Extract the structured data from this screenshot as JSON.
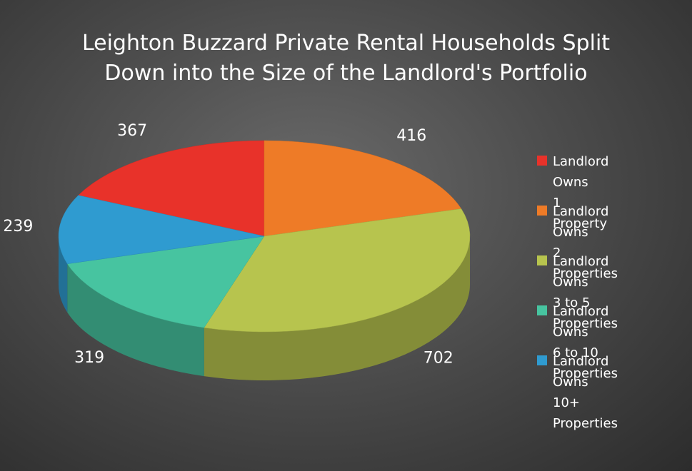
{
  "chart_data": {
    "type": "pie",
    "title": "Leighton Buzzard Private Rental Households Split\nDown into the Size of the Landlord's Portfolio",
    "categories": [
      "Landlord Owns\n1 Property",
      "Landlord Owns\n2 Properties",
      "Landlord Owns\n3 to 5 Properties",
      "Landlord Owns\n6 to 10 Properties",
      "Landlord Owns\n10+ Properties"
    ],
    "values": [
      367,
      416,
      702,
      319,
      239
    ],
    "colors": [
      "#e8322a",
      "#ee7b27",
      "#b7c44e",
      "#47c4a0",
      "#2f9bd0"
    ],
    "legend": "right"
  }
}
